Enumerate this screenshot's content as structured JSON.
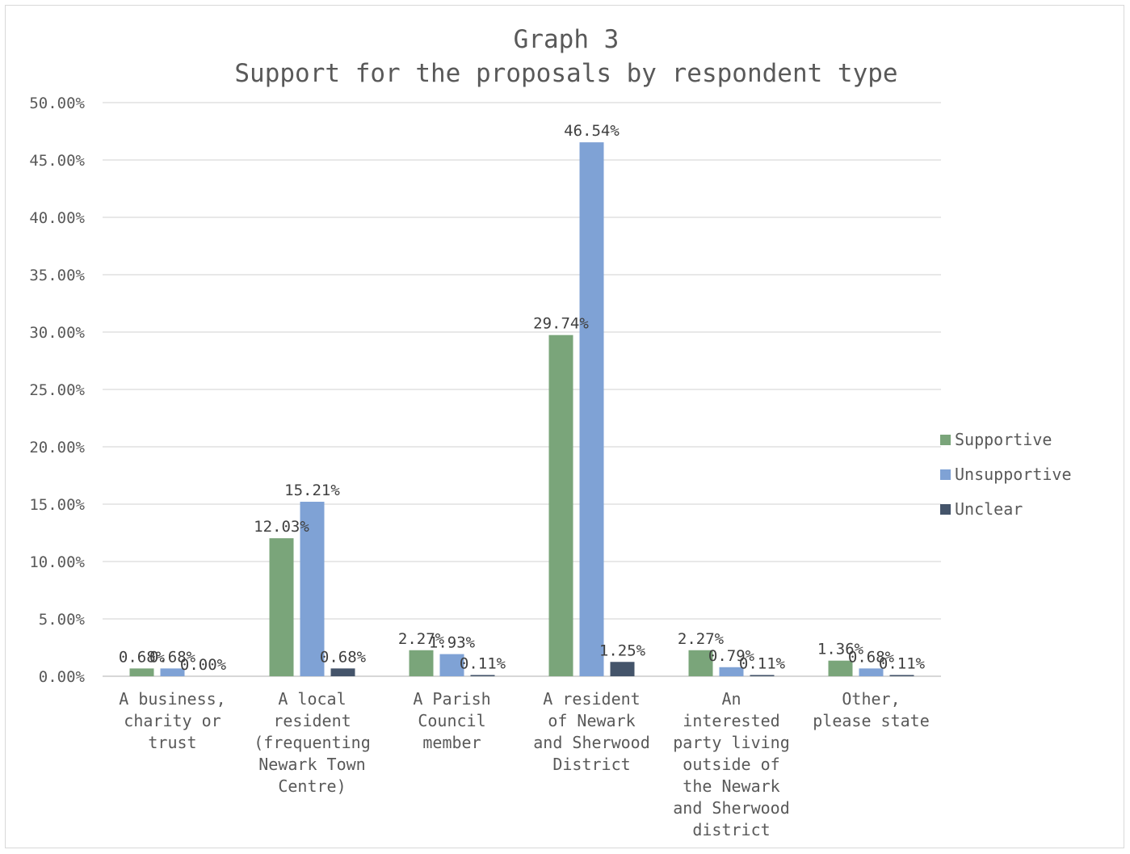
{
  "chart_data": {
    "type": "bar",
    "title": "Graph 3",
    "subtitle": "Support for the proposals by respondent type",
    "categories": [
      [
        "A business,",
        "charity or",
        "trust"
      ],
      [
        "A local",
        "resident",
        "(frequenting",
        "Newark Town",
        "Centre)"
      ],
      [
        "A Parish",
        "Council",
        "member"
      ],
      [
        "A resident",
        "of Newark",
        "and Sherwood",
        "District"
      ],
      [
        "An",
        "interested",
        "party living",
        "outside of",
        "the Newark",
        "and Sherwood",
        "district"
      ],
      [
        "Other,",
        "please state"
      ]
    ],
    "series": [
      {
        "name": "Supportive",
        "color": "#7aa57a",
        "values": [
          0.68,
          12.03,
          2.27,
          29.74,
          2.27,
          1.36
        ],
        "labels": [
          "0.68%",
          "12.03%",
          "2.27%",
          "29.74%",
          "2.27%",
          "1.36%"
        ]
      },
      {
        "name": "Unsupportive",
        "color": "#7fa2d5",
        "values": [
          0.68,
          15.21,
          1.93,
          46.54,
          0.79,
          0.68
        ],
        "labels": [
          "0.68%",
          "15.21%",
          "1.93%",
          "46.54%",
          "0.79%",
          "0.68%"
        ]
      },
      {
        "name": "Unclear",
        "color": "#44546a",
        "values": [
          0.0,
          0.68,
          0.11,
          1.25,
          0.11,
          0.11
        ],
        "labels": [
          "0.00%",
          "0.68%",
          "0.11%",
          "1.25%",
          "0.11%",
          "0.11%"
        ]
      }
    ],
    "ylim": [
      0,
      50
    ],
    "yticks": [
      "0.00%",
      "5.00%",
      "10.00%",
      "15.00%",
      "20.00%",
      "25.00%",
      "30.00%",
      "35.00%",
      "40.00%",
      "45.00%",
      "50.00%"
    ],
    "grid": true,
    "legend_position": "right"
  }
}
